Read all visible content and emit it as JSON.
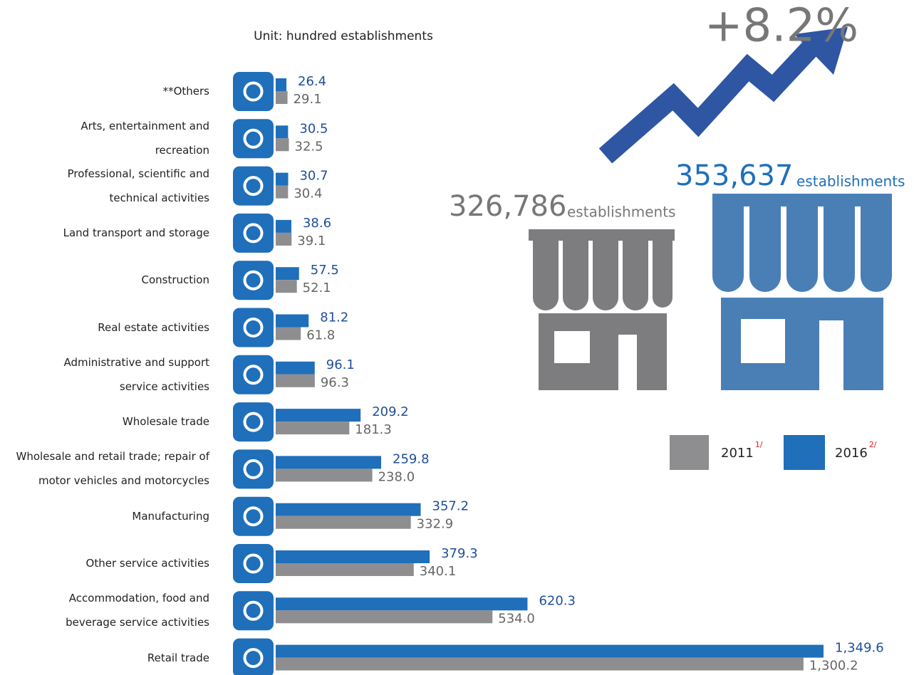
{
  "chart_data": {
    "type": "bar",
    "orientation": "horizontal",
    "subtitle": "Unit: hundred establishments",
    "categories": [
      "**Others",
      "Arts, entertainment and\nrecreation",
      "Professional, scientific and\ntechnical activities",
      "Land transport and storage",
      "Construction",
      "Real estate activities",
      "Administrative and support\nservice activities",
      "Wholesale trade",
      "Wholesale and retail trade; repair of\nmotor vehicles and motorcycles",
      "Manufacturing",
      "Other service activities",
      "Accommodation, food and\nbeverage service activities",
      "Retail trade"
    ],
    "series": [
      {
        "name": "2016",
        "note": "2/",
        "color": "#1f6fba",
        "values": [
          26.4,
          30.5,
          30.7,
          38.6,
          57.5,
          81.2,
          96.1,
          209.2,
          259.8,
          357.2,
          379.3,
          620.3,
          1349.6
        ],
        "value_labels": [
          "26.4",
          "30.5",
          "30.7",
          "38.6",
          "57.5",
          "81.2",
          "96.1",
          "209.2",
          "259.8",
          "357.2",
          "379.3",
          "620.3",
          "1,349.6"
        ]
      },
      {
        "name": "2011",
        "note": "1/",
        "color": "#8e8e90",
        "values": [
          29.1,
          32.5,
          30.4,
          39.1,
          52.1,
          61.8,
          96.3,
          181.3,
          238.0,
          332.9,
          340.1,
          534.0,
          1300.2
        ],
        "value_labels": [
          "29.1",
          "32.5",
          "30.4",
          "39.1",
          "52.1",
          "61.8",
          "96.3",
          "181.3",
          "238.0",
          "332.9",
          "340.1",
          "534.0",
          "1,300.2"
        ]
      }
    ],
    "annotations": {
      "change": "+8.2%",
      "total_2011": {
        "value": "326,786",
        "unit": "establishments"
      },
      "total_2016": {
        "value": "353,637",
        "unit": "establishments"
      }
    }
  }
}
